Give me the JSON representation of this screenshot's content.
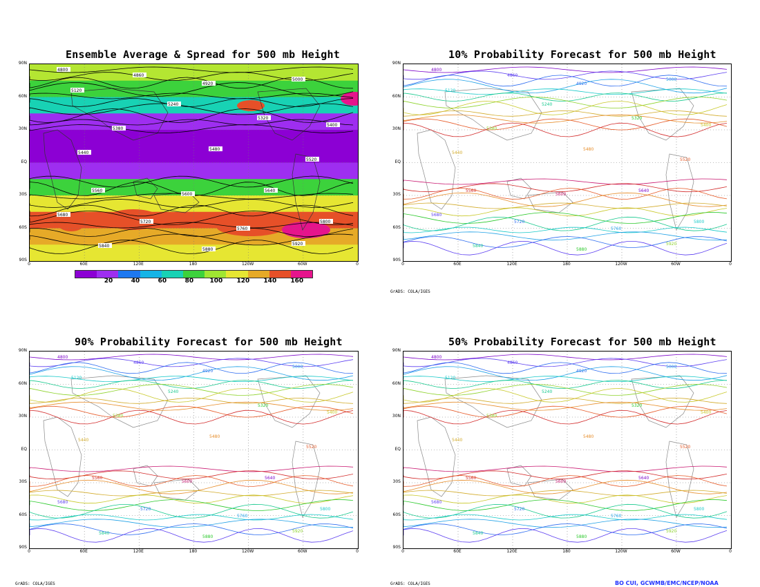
{
  "panels": [
    {
      "id": "p1",
      "title": "Ensemble Average & Spread for 500 mb Height",
      "type": "spread"
    },
    {
      "id": "p2",
      "title": "10% Probability Forecast for 500 mb Height",
      "type": "prob"
    },
    {
      "id": "p3",
      "title": "90% Probability Forecast for 500 mb Height",
      "type": "prob"
    },
    {
      "id": "p4",
      "title": "50% Probability Forecast for 500 mb Height",
      "type": "prob"
    }
  ],
  "axes": {
    "lat_labels": [
      "90N",
      "60N",
      "30N",
      "EQ",
      "30S",
      "60S",
      "90S"
    ],
    "lon_labels": [
      "0",
      "60E",
      "120E",
      "180",
      "120W",
      "60W",
      "0"
    ]
  },
  "colorbar": {
    "labels": [
      "20",
      "40",
      "60",
      "80",
      "100",
      "120",
      "140",
      "160"
    ],
    "colors": [
      "#8c00d4",
      "#9e2ef0",
      "#1e78f0",
      "#14b4e6",
      "#18d2b4",
      "#3cd23c",
      "#a0e632",
      "#e6e632",
      "#e6aa28",
      "#e65028",
      "#e6148c"
    ]
  },
  "contours": {
    "values": [
      "4800",
      "4860",
      "4920",
      "5000",
      "5120",
      "5240",
      "5320",
      "5380",
      "5400",
      "5440",
      "5480",
      "5520",
      "5560",
      "5600",
      "5640",
      "5680",
      "5720",
      "5760",
      "5800",
      "5840",
      "5880",
      "5920"
    ]
  },
  "credits": {
    "grads_left": "GrADS: COLA/IGES",
    "grads_mid": "GrADS: COLA/IGES",
    "grads_bottom_left": "GrADS: COLA/IGES",
    "author": "BO CUI, GCWMB/EMC/NCEP/NOAA"
  }
}
